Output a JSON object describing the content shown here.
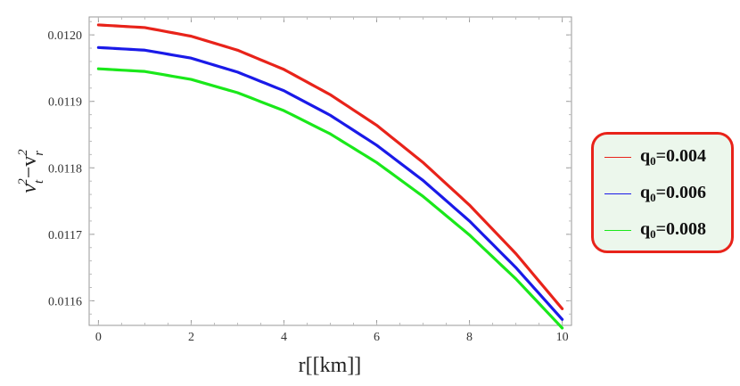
{
  "chart_data": {
    "type": "line",
    "xlabel": "r[[km]]",
    "ylabel": "v_t^2 - v_r^2",
    "xlim": [
      -0.2,
      10.2
    ],
    "ylim": [
      0.011563,
      0.012027
    ],
    "x_ticks": [
      "0",
      "2",
      "4",
      "6",
      "8",
      "10"
    ],
    "y_ticks": [
      "0.0116",
      "0.0117",
      "0.0118",
      "0.0119",
      "0.0120"
    ],
    "grid": false,
    "legend_position": "right",
    "series": [
      {
        "name": "q0=0.004",
        "color": "#e8231a",
        "x": [
          0,
          1,
          2,
          3,
          4,
          5,
          6,
          7,
          8,
          9,
          10
        ],
        "values": [
          0.012015,
          0.012011,
          0.011998,
          0.011977,
          0.011948,
          0.01191,
          0.011864,
          0.011808,
          0.011744,
          0.011671,
          0.011588
        ]
      },
      {
        "name": "q0=0.006",
        "color": "#1a1ae8",
        "x": [
          0,
          1,
          2,
          3,
          4,
          5,
          6,
          7,
          8,
          9,
          10
        ],
        "values": [
          0.011981,
          0.011977,
          0.011965,
          0.011944,
          0.011916,
          0.011879,
          0.011834,
          0.011781,
          0.01172,
          0.01165,
          0.011572
        ]
      },
      {
        "name": "q0=0.008",
        "color": "#1ae81a",
        "x": [
          0,
          1,
          2,
          3,
          4,
          5,
          6,
          7,
          8,
          9,
          10
        ],
        "values": [
          0.011949,
          0.011945,
          0.011933,
          0.011913,
          0.011886,
          0.011851,
          0.011808,
          0.011757,
          0.011699,
          0.011633,
          0.011559
        ]
      }
    ]
  },
  "legend": {
    "items": [
      {
        "prefix": "q",
        "sub": "0",
        "value": "=0.004",
        "color": "#e8231a"
      },
      {
        "prefix": "q",
        "sub": "0",
        "value": "=0.006",
        "color": "#1a1ae8"
      },
      {
        "prefix": "q",
        "sub": "0",
        "value": "=0.008",
        "color": "#1ae81a"
      }
    ]
  }
}
